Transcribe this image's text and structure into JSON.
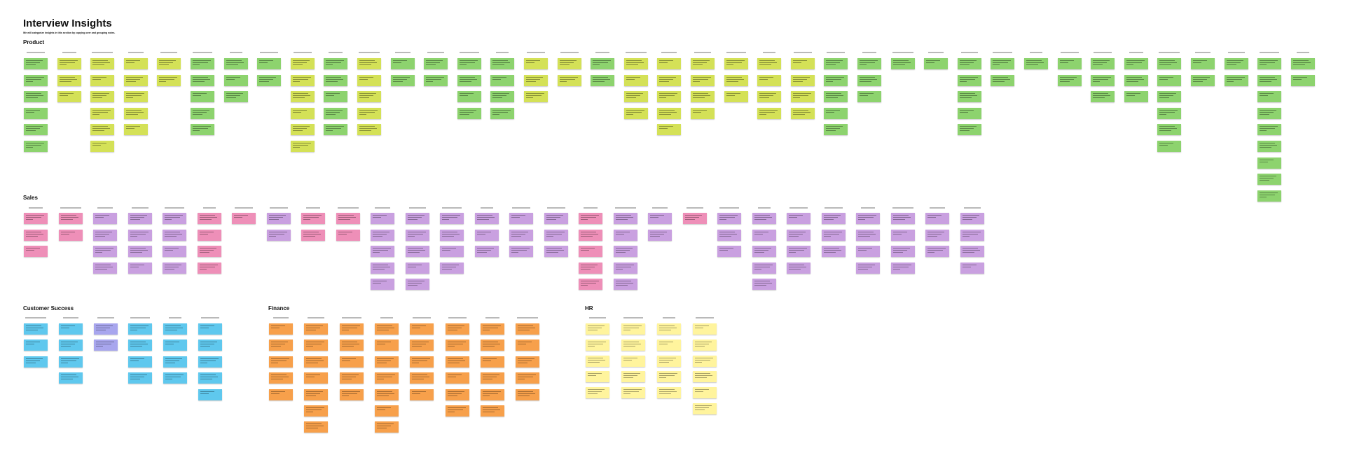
{
  "page": {
    "title": "Interview Insights",
    "subtitle": "We will categorize insights in this section by copying over and grouping notes."
  },
  "colors": {
    "green": "#8dd36e",
    "lime": "#d4e157",
    "pink": "#ee8fb8",
    "purple": "#c9a0e0",
    "blue": "#5fc8ee",
    "lavender": "#a8a6ee",
    "orange": "#f7a04b",
    "yellow": "#fff49d",
    "header": "#b9b9b9"
  },
  "sections": [
    {
      "label": "Product",
      "columns": [
        {
          "notes": [
            "green",
            "green",
            "green",
            "green",
            "green",
            "green"
          ]
        },
        {
          "notes": [
            "lime",
            "lime",
            "lime"
          ]
        },
        {
          "notes": [
            "lime",
            "lime",
            "lime",
            "lime",
            "lime",
            "lime"
          ]
        },
        {
          "notes": [
            "lime",
            "lime",
            "lime",
            "lime",
            "lime"
          ]
        },
        {
          "notes": [
            "lime",
            "lime"
          ]
        },
        {
          "notes": [
            "green",
            "green",
            "green",
            "green",
            "green"
          ]
        },
        {
          "notes": [
            "green",
            "green",
            "green"
          ]
        },
        {
          "notes": [
            "green",
            "green"
          ]
        },
        {
          "notes": [
            "lime",
            "lime",
            "lime",
            "lime",
            "lime",
            "lime"
          ]
        },
        {
          "notes": [
            "green",
            "green",
            "green",
            "green",
            "green"
          ]
        },
        {
          "notes": [
            "lime",
            "lime",
            "lime",
            "lime",
            "lime"
          ]
        },
        {
          "notes": [
            "green",
            "green"
          ]
        },
        {
          "notes": [
            "green",
            "green"
          ]
        },
        {
          "notes": [
            "green",
            "green",
            "green",
            "green"
          ]
        },
        {
          "notes": [
            "green",
            "green",
            "green",
            "green"
          ]
        },
        {
          "notes": [
            "lime",
            "lime",
            "lime"
          ]
        },
        {
          "notes": [
            "lime",
            "lime"
          ]
        },
        {
          "notes": [
            "green",
            "green"
          ]
        },
        {
          "notes": [
            "lime",
            "lime",
            "lime",
            "lime"
          ]
        },
        {
          "notes": [
            "lime",
            "lime",
            "lime",
            "lime",
            "lime"
          ]
        },
        {
          "notes": [
            "lime",
            "lime",
            "lime",
            "lime"
          ]
        },
        {
          "notes": [
            "lime",
            "lime",
            "lime"
          ]
        },
        {
          "notes": [
            "lime",
            "lime",
            "lime",
            "lime"
          ]
        },
        {
          "notes": [
            "lime",
            "lime",
            "lime",
            "lime"
          ]
        },
        {
          "notes": [
            "green",
            "green",
            "green",
            "green",
            "green"
          ]
        },
        {
          "notes": [
            "green",
            "green",
            "green"
          ]
        },
        {
          "notes": [
            "green"
          ]
        },
        {
          "notes": [
            "green"
          ]
        },
        {
          "notes": [
            "green",
            "green",
            "green",
            "green",
            "green"
          ]
        },
        {
          "notes": [
            "green",
            "green"
          ]
        },
        {
          "notes": [
            "green"
          ]
        },
        {
          "notes": [
            "green",
            "green"
          ]
        },
        {
          "notes": [
            "green",
            "green",
            "green"
          ]
        },
        {
          "notes": [
            "green",
            "green",
            "green"
          ]
        },
        {
          "notes": [
            "green",
            "green",
            "green",
            "green",
            "green",
            "green"
          ]
        },
        {
          "notes": [
            "green",
            "green"
          ]
        },
        {
          "notes": [
            "green",
            "green"
          ]
        },
        {
          "notes": [
            "green",
            "green",
            "green",
            "green",
            "green",
            "green",
            "green",
            "green",
            "green"
          ]
        },
        {
          "notes": [
            "green",
            "green"
          ]
        }
      ]
    },
    {
      "label": "Sales",
      "columns": [
        {
          "notes": [
            "pink",
            "pink",
            "pink"
          ]
        },
        {
          "notes": [
            "pink",
            "pink"
          ]
        },
        {
          "notes": [
            "purple",
            "purple",
            "purple",
            "purple"
          ]
        },
        {
          "notes": [
            "purple",
            "purple",
            "purple",
            "purple"
          ]
        },
        {
          "notes": [
            "purple",
            "purple",
            "purple",
            "purple"
          ]
        },
        {
          "notes": [
            "pink",
            "pink",
            "pink",
            "pink"
          ]
        },
        {
          "notes": [
            "pink"
          ]
        },
        {
          "notes": [
            "purple",
            "purple"
          ]
        },
        {
          "notes": [
            "pink",
            "pink"
          ]
        },
        {
          "notes": [
            "pink",
            "pink"
          ]
        },
        {
          "notes": [
            "purple",
            "purple",
            "purple",
            "purple",
            "purple"
          ]
        },
        {
          "notes": [
            "purple",
            "purple",
            "purple",
            "purple",
            "purple"
          ]
        },
        {
          "notes": [
            "purple",
            "purple",
            "purple",
            "purple"
          ]
        },
        {
          "notes": [
            "purple",
            "purple",
            "purple"
          ]
        },
        {
          "notes": [
            "purple",
            "purple",
            "purple"
          ]
        },
        {
          "notes": [
            "purple",
            "purple",
            "purple"
          ]
        },
        {
          "notes": [
            "pink",
            "pink",
            "pink",
            "pink",
            "pink"
          ]
        },
        {
          "notes": [
            "purple",
            "purple",
            "purple",
            "purple",
            "purple"
          ]
        },
        {
          "notes": [
            "purple",
            "purple"
          ]
        },
        {
          "notes": [
            "pink"
          ]
        },
        {
          "notes": [
            "purple",
            "purple",
            "purple"
          ]
        },
        {
          "notes": [
            "purple",
            "purple",
            "purple",
            "purple",
            "purple"
          ]
        },
        {
          "notes": [
            "purple",
            "purple",
            "purple",
            "purple"
          ]
        },
        {
          "notes": [
            "purple",
            "purple",
            "purple"
          ]
        },
        {
          "notes": [
            "purple",
            "purple",
            "purple",
            "purple"
          ]
        },
        {
          "notes": [
            "purple",
            "purple",
            "purple",
            "purple"
          ]
        },
        {
          "notes": [
            "purple",
            "purple",
            "purple"
          ]
        },
        {
          "notes": [
            "purple",
            "purple",
            "purple",
            "purple"
          ]
        }
      ]
    },
    {
      "label": "Customer Success",
      "columns": [
        {
          "notes": [
            "blue",
            "blue",
            "blue"
          ]
        },
        {
          "notes": [
            "blue",
            "blue",
            "blue",
            "blue"
          ]
        },
        {
          "notes": [
            "lavender",
            "lavender"
          ]
        },
        {
          "notes": [
            "blue",
            "blue",
            "blue",
            "blue"
          ]
        },
        {
          "notes": [
            "blue",
            "blue",
            "blue",
            "blue"
          ]
        },
        {
          "notes": [
            "blue",
            "blue",
            "blue",
            "blue",
            "blue"
          ]
        }
      ]
    },
    {
      "label": "Finance",
      "columns": [
        {
          "notes": [
            "orange",
            "orange",
            "orange",
            "orange",
            "orange"
          ]
        },
        {
          "notes": [
            "orange",
            "orange",
            "orange",
            "orange",
            "orange",
            "orange",
            "orange"
          ]
        },
        {
          "notes": [
            "orange",
            "orange",
            "orange",
            "orange",
            "orange"
          ]
        },
        {
          "notes": [
            "orange",
            "orange",
            "orange",
            "orange",
            "orange",
            "orange",
            "orange"
          ]
        },
        {
          "notes": [
            "orange",
            "orange",
            "orange",
            "orange",
            "orange"
          ]
        },
        {
          "notes": [
            "orange",
            "orange",
            "orange",
            "orange",
            "orange",
            "orange"
          ]
        },
        {
          "notes": [
            "orange",
            "orange",
            "orange",
            "orange",
            "orange",
            "orange"
          ]
        },
        {
          "notes": [
            "orange",
            "orange",
            "orange",
            "orange",
            "orange"
          ]
        }
      ]
    },
    {
      "label": "HR",
      "columns": [
        {
          "notes": [
            "yellow",
            "yellow",
            "yellow",
            "yellow",
            "yellow"
          ]
        },
        {
          "notes": [
            "yellow",
            "yellow",
            "yellow",
            "yellow",
            "yellow"
          ]
        },
        {
          "notes": [
            "yellow",
            "yellow",
            "yellow",
            "yellow",
            "yellow"
          ]
        },
        {
          "notes": [
            "yellow",
            "yellow",
            "yellow",
            "yellow",
            "yellow",
            "yellow"
          ]
        }
      ]
    }
  ]
}
